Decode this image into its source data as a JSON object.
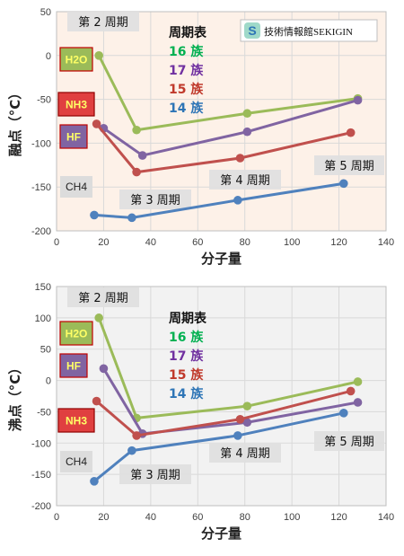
{
  "chart_data": [
    {
      "type": "line",
      "id": "melting",
      "xlabel": "分子量",
      "ylabel": "融点（°C）",
      "xlim": [
        0,
        140
      ],
      "ylim": [
        -200,
        50
      ],
      "xticks": [
        0,
        20,
        40,
        60,
        80,
        100,
        120,
        140
      ],
      "yticks": [
        50,
        0,
        -50,
        -100,
        -150,
        -200
      ],
      "background": "#fdf1e8",
      "grid": true,
      "legend_title": "周期表",
      "series": [
        {
          "name": "16 族",
          "color": "#9bbb59",
          "x": [
            18,
            34,
            81,
            128
          ],
          "y": [
            0,
            -85,
            -66,
            -49
          ]
        },
        {
          "name": "17 族",
          "color": "#8064a2",
          "x": [
            20,
            36.5,
            81,
            128
          ],
          "y": [
            -83,
            -114,
            -87,
            -51
          ]
        },
        {
          "name": "15 族",
          "color": "#c0504d",
          "x": [
            17,
            34,
            78,
            125
          ],
          "y": [
            -78,
            -133,
            -117,
            -88
          ]
        },
        {
          "name": "14 族",
          "color": "#4f81bd",
          "x": [
            16,
            32,
            77,
            122
          ],
          "y": [
            -182,
            -185,
            -165,
            -146
          ]
        }
      ],
      "annotations": {
        "period2": "第 2 周期",
        "period3": "第 3 周期",
        "period4": "第 4 周期",
        "period5": "第 5 周期",
        "h2o": "H2O",
        "nh3": "NH3",
        "hf": "HF",
        "ch4": "CH4"
      },
      "logo": {
        "mark": "S",
        "text": "技術情報館SEKIGIN"
      }
    },
    {
      "type": "line",
      "id": "boiling",
      "xlabel": "分子量",
      "ylabel": "沸点（°C）",
      "xlim": [
        0,
        140
      ],
      "ylim": [
        -200,
        150
      ],
      "xticks": [
        0,
        20,
        40,
        60,
        80,
        100,
        120,
        140
      ],
      "yticks": [
        150,
        100,
        50,
        0,
        -50,
        -100,
        -150,
        -200
      ],
      "background": "#f2f2f2",
      "grid": true,
      "legend_title": "周期表",
      "series": [
        {
          "name": "16 族",
          "color": "#9bbb59",
          "x": [
            18,
            34,
            81,
            128
          ],
          "y": [
            100,
            -60,
            -41,
            -2
          ]
        },
        {
          "name": "17 族",
          "color": "#8064a2",
          "x": [
            20,
            36.5,
            81,
            128
          ],
          "y": [
            19,
            -85,
            -67,
            -35
          ]
        },
        {
          "name": "15 族",
          "color": "#c0504d",
          "x": [
            17,
            34,
            78,
            125
          ],
          "y": [
            -33,
            -88,
            -62,
            -17
          ]
        },
        {
          "name": "14 族",
          "color": "#4f81bd",
          "x": [
            16,
            32,
            77,
            122
          ],
          "y": [
            -161,
            -112,
            -88,
            -52
          ]
        }
      ],
      "annotations": {
        "period2": "第 2 周期",
        "period3": "第 3 周期",
        "period4": "第 4 周期",
        "period5": "第 5 周期",
        "h2o": "H2O",
        "nh3": "NH3",
        "hf": "HF",
        "ch4": "CH4"
      }
    }
  ]
}
